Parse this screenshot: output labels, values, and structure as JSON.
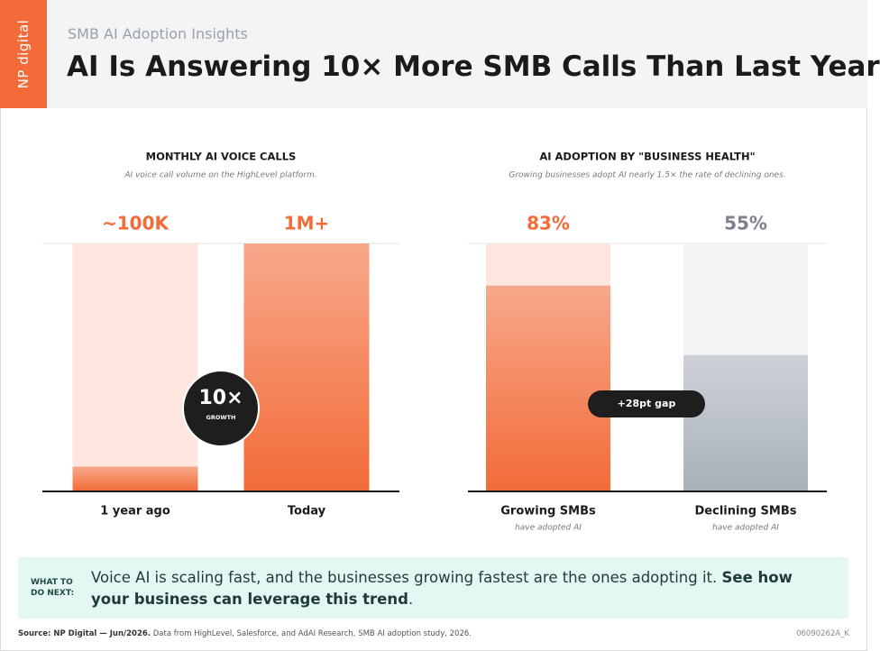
{
  "header": {
    "logo": "NP digital",
    "subtitle": "SMB AI Adoption Insights",
    "title": "AI Is Answering 10× More SMB Calls Than Last Year"
  },
  "chart_data": [
    {
      "type": "bar",
      "title": "MONTHLY AI VOICE CALLS",
      "subtitle": "AI voice call volume on the HighLevel platform.",
      "categories": [
        "1 year ago",
        "Today"
      ],
      "values": [
        100000,
        1000000
      ],
      "value_labels": [
        "~100K",
        "1M+"
      ],
      "colors": [
        "#f26b38",
        "#f26b38"
      ],
      "track_colors": [
        "#fde6dd",
        "#fde6dd"
      ],
      "ylim": [
        0,
        1000000
      ],
      "badge": {
        "value": "10×",
        "label": "GROWTH"
      }
    },
    {
      "type": "bar",
      "title": "AI ADOPTION BY \"BUSINESS HEALTH\"",
      "subtitle": "Growing businesses adopt AI nearly 1.5× the rate of declining ones.",
      "categories": [
        "Growing SMBs",
        "Declining SMBs"
      ],
      "category_notes": [
        "have adopted AI",
        "have adopted AI"
      ],
      "values": [
        83,
        55
      ],
      "value_labels": [
        "83%",
        "55%"
      ],
      "colors": [
        "#f26b38",
        "#a9b0ba"
      ],
      "label_colors": [
        "#f26b38",
        "#7b8089"
      ],
      "track_colors": [
        "#fde6dd",
        "#f3f4f5"
      ],
      "ylim": [
        0,
        100
      ],
      "annotation": "+28pt gap"
    }
  ],
  "callout": {
    "label": "WHAT TO DO NEXT:",
    "text": "Voice AI is scaling fast, and the businesses growing fastest are the ones adopting it. ",
    "link_text": "See how your business can leverage this trend",
    "end": "."
  },
  "footer": {
    "source": "Source: NP Digital — Jun/2026.",
    "note": " Data from HighLevel, Salesforce, and AdAI Research, SMB AI adoption study, 2026.",
    "code": "06090262A_K"
  }
}
